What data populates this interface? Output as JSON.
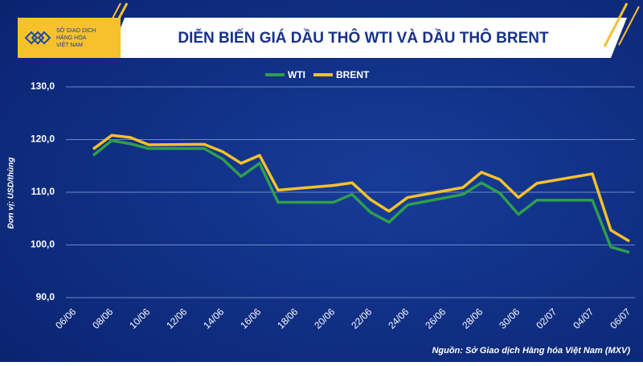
{
  "logo_text": [
    "SỞ GIAO DỊCH",
    "HÀNG HÓA",
    "VIỆT NAM"
  ],
  "chart_data": {
    "type": "line",
    "title": "DIỄN BIẾN GIÁ DẦU THÔ WTI VÀ DẦU THÔ BRENT",
    "y_label": "Đơn vị: USD/thùng",
    "source": "Nguồn: Sở Giao dịch Hàng hóa Việt Nam (MXV)",
    "x": [
      "07/06",
      "08/06",
      "09/06",
      "10/06",
      "13/06",
      "14/06",
      "15/06",
      "16/06",
      "17/06",
      "20/06",
      "21/06",
      "22/06",
      "23/06",
      "24/06",
      "27/06",
      "28/06",
      "29/06",
      "30/06",
      "01/07",
      "04/07",
      "05/07",
      "06/07"
    ],
    "xticks": [
      "06/06",
      "08/06",
      "10/06",
      "12/06",
      "14/06",
      "16/06",
      "18/06",
      "20/06",
      "22/06",
      "24/06",
      "26/06",
      "28/06",
      "30/06",
      "02/07",
      "04/07",
      "06/07"
    ],
    "series": [
      {
        "name": "WTI",
        "color": "#2f9e4c",
        "values": [
          117.0,
          119.8,
          119.2,
          118.3,
          118.3,
          116.3,
          113.0,
          115.5,
          108.1,
          108.1,
          109.6,
          106.2,
          104.3,
          107.6,
          109.6,
          111.8,
          109.8,
          105.8,
          108.5,
          108.5,
          99.6,
          98.6
        ]
      },
      {
        "name": "BRENT",
        "color": "#f6c12c",
        "values": [
          118.2,
          120.8,
          120.4,
          119.0,
          119.1,
          117.7,
          115.5,
          117.0,
          110.4,
          111.3,
          111.8,
          108.6,
          106.4,
          109.0,
          110.9,
          113.8,
          112.4,
          109.0,
          111.7,
          113.5,
          102.8,
          100.7
        ]
      }
    ],
    "ylim": [
      90,
      130
    ],
    "yticks": [
      {
        "value": 90,
        "label": "90,0"
      },
      {
        "value": 100,
        "label": "100,0"
      },
      {
        "value": 110,
        "label": "110,0"
      },
      {
        "value": 120,
        "label": "120,0"
      },
      {
        "value": 130,
        "label": "130,0"
      }
    ],
    "grid": true
  }
}
